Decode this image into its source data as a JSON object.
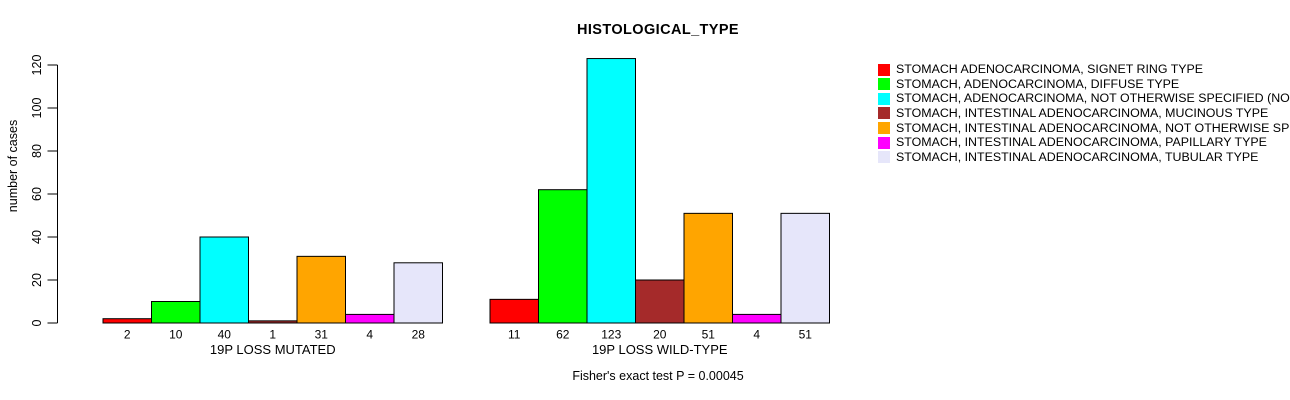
{
  "chart_data": {
    "type": "bar",
    "title": "HISTOLOGICAL_TYPE",
    "ylabel": "number of cases",
    "ylim": [
      0,
      120
    ],
    "yticks": [
      0,
      20,
      40,
      60,
      80,
      100,
      120
    ],
    "grid": false,
    "legend_position": "right",
    "annotation": "Fisher's exact test P = 0.00045",
    "categories": [
      "19P LOSS MUTATED",
      "19P LOSS WILD-TYPE"
    ],
    "series": [
      {
        "name": "STOMACH ADENOCARCINOMA, SIGNET RING TYPE",
        "color": "#FF0000",
        "values": [
          2,
          11
        ]
      },
      {
        "name": "STOMACH, ADENOCARCINOMA, DIFFUSE TYPE",
        "color": "#00FF00",
        "values": [
          10,
          62
        ]
      },
      {
        "name": "STOMACH, ADENOCARCINOMA, NOT OTHERWISE SPECIFIED (NO",
        "color": "#00FFFF",
        "values": [
          40,
          123
        ]
      },
      {
        "name": "STOMACH, INTESTINAL ADENOCARCINOMA, MUCINOUS TYPE",
        "color": "#A52A2A",
        "values": [
          1,
          20
        ]
      },
      {
        "name": "STOMACH, INTESTINAL ADENOCARCINOMA, NOT OTHERWISE SP",
        "color": "#FFA500",
        "values": [
          31,
          51
        ]
      },
      {
        "name": "STOMACH, INTESTINAL ADENOCARCINOMA, PAPILLARY TYPE",
        "color": "#FF00FF",
        "values": [
          4,
          4
        ]
      },
      {
        "name": "STOMACH, INTESTINAL ADENOCARCINOMA, TUBULAR TYPE",
        "color": "#E6E6FA",
        "values": [
          28,
          51
        ]
      }
    ],
    "axis_color": "#000000",
    "bar_border_color": "#000000"
  }
}
